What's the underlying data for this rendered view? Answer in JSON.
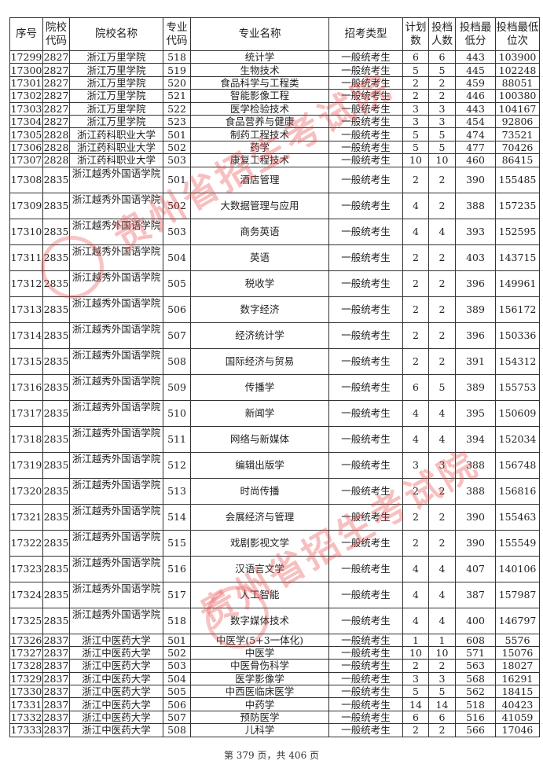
{
  "header": [
    "序号",
    "院校代码",
    "院校名称",
    "专业代码",
    "专业名称",
    "招考类型",
    "计划数",
    "投档人数",
    "投档最低分",
    "投档最低位次"
  ],
  "rows": [
    [
      "17299",
      "2827",
      "浙江万里学院",
      "518",
      "统计学",
      "一般统考生",
      "6",
      "6",
      "443",
      "103900"
    ],
    [
      "17300",
      "2827",
      "浙江万里学院",
      "519",
      "生物技术",
      "一般统考生",
      "5",
      "5",
      "445",
      "102248"
    ],
    [
      "17301",
      "2827",
      "浙江万里学院",
      "520",
      "食品科学与工程类",
      "一般统考生",
      "2",
      "2",
      "459",
      "88051"
    ],
    [
      "17302",
      "2827",
      "浙江万里学院",
      "521",
      "智能影像工程",
      "一般统考生",
      "2",
      "2",
      "446",
      "100380"
    ],
    [
      "17303",
      "2827",
      "浙江万里学院",
      "522",
      "医学检验技术",
      "一般统考生",
      "3",
      "3",
      "443",
      "104167"
    ],
    [
      "17304",
      "2827",
      "浙江万里学院",
      "523",
      "食品营养与健康",
      "一般统考生",
      "3",
      "3",
      "454",
      "92806"
    ],
    [
      "17305",
      "2828",
      "浙江药科职业大学",
      "501",
      "制药工程技术",
      "一般统考生",
      "5",
      "5",
      "474",
      "73521"
    ],
    [
      "17306",
      "2828",
      "浙江药科职业大学",
      "502",
      "药学",
      "一般统考生",
      "5",
      "5",
      "477",
      "70426"
    ],
    [
      "17307",
      "2828",
      "浙江药科职业大学",
      "503",
      "康复工程技术",
      "一般统考生",
      "10",
      "10",
      "460",
      "86415"
    ],
    [
      "17308",
      "2835",
      "浙江越秀外国语学院",
      "501",
      "酒店管理",
      "一般统考生",
      "2",
      "2",
      "390",
      "155485"
    ],
    [
      "17309",
      "2835",
      "浙江越秀外国语学院",
      "502",
      "大数据管理与应用",
      "一般统考生",
      "4",
      "2",
      "388",
      "157235"
    ],
    [
      "17310",
      "2835",
      "浙江越秀外国语学院",
      "503",
      "商务英语",
      "一般统考生",
      "4",
      "4",
      "393",
      "152595"
    ],
    [
      "17311",
      "2835",
      "浙江越秀外国语学院",
      "504",
      "英语",
      "一般统考生",
      "2",
      "2",
      "403",
      "143715"
    ],
    [
      "17312",
      "2835",
      "浙江越秀外国语学院",
      "505",
      "税收学",
      "一般统考生",
      "2",
      "2",
      "396",
      "149961"
    ],
    [
      "17313",
      "2835",
      "浙江越秀外国语学院",
      "506",
      "数字经济",
      "一般统考生",
      "2",
      "2",
      "389",
      "156172"
    ],
    [
      "17314",
      "2835",
      "浙江越秀外国语学院",
      "507",
      "经济统计学",
      "一般统考生",
      "2",
      "2",
      "396",
      "150336"
    ],
    [
      "17315",
      "2835",
      "浙江越秀外国语学院",
      "508",
      "国际经济与贸易",
      "一般统考生",
      "2",
      "2",
      "391",
      "154312"
    ],
    [
      "17316",
      "2835",
      "浙江越秀外国语学院",
      "509",
      "传播学",
      "一般统考生",
      "6",
      "5",
      "389",
      "155753"
    ],
    [
      "17317",
      "2835",
      "浙江越秀外国语学院",
      "510",
      "新闻学",
      "一般统考生",
      "4",
      "4",
      "395",
      "150609"
    ],
    [
      "17318",
      "2835",
      "浙江越秀外国语学院",
      "511",
      "网络与新媒体",
      "一般统考生",
      "4",
      "4",
      "394",
      "152034"
    ],
    [
      "17319",
      "2835",
      "浙江越秀外国语学院",
      "512",
      "编辑出版学",
      "一般统考生",
      "3",
      "3",
      "388",
      "156748"
    ],
    [
      "17320",
      "2835",
      "浙江越秀外国语学院",
      "513",
      "时尚传播",
      "一般统考生",
      "2",
      "2",
      "388",
      "156816"
    ],
    [
      "17321",
      "2835",
      "浙江越秀外国语学院",
      "514",
      "会展经济与管理",
      "一般统考生",
      "2",
      "2",
      "390",
      "155463"
    ],
    [
      "17322",
      "2835",
      "浙江越秀外国语学院",
      "515",
      "戏剧影视文学",
      "一般统考生",
      "2",
      "2",
      "390",
      "155549"
    ],
    [
      "17323",
      "2835",
      "浙江越秀外国语学院",
      "516",
      "汉语言文学",
      "一般统考生",
      "4",
      "4",
      "407",
      "140106"
    ],
    [
      "17324",
      "2835",
      "浙江越秀外国语学院",
      "517",
      "人工智能",
      "一般统考生",
      "4",
      "4",
      "387",
      "157987"
    ],
    [
      "17325",
      "2835",
      "浙江越秀外国语学院",
      "518",
      "数字媒体技术",
      "一般统考生",
      "4",
      "4",
      "400",
      "146797"
    ],
    [
      "17326",
      "2837",
      "浙江中医药大学",
      "501",
      "中医学(5+3一体化)",
      "一般统考生",
      "1",
      "1",
      "608",
      "5576"
    ],
    [
      "17327",
      "2837",
      "浙江中医药大学",
      "502",
      "中医学",
      "一般统考生",
      "10",
      "10",
      "571",
      "15076"
    ],
    [
      "17328",
      "2837",
      "浙江中医药大学",
      "503",
      "中医骨伤科学",
      "一般统考生",
      "2",
      "2",
      "563",
      "18027"
    ],
    [
      "17329",
      "2837",
      "浙江中医药大学",
      "504",
      "医学影像学",
      "一般统考生",
      "3",
      "3",
      "568",
      "16291"
    ],
    [
      "17330",
      "2837",
      "浙江中医药大学",
      "505",
      "中西医临床医学",
      "一般统考生",
      "5",
      "5",
      "562",
      "18415"
    ],
    [
      "17331",
      "2837",
      "浙江中医药大学",
      "506",
      "中药学",
      "一般统考生",
      "14",
      "14",
      "518",
      "40423"
    ],
    [
      "17332",
      "2837",
      "浙江中医药大学",
      "507",
      "预防医学",
      "一般统考生",
      "6",
      "6",
      "516",
      "41059"
    ],
    [
      "17333",
      "2837",
      "浙江中医药大学",
      "508",
      "儿科学",
      "一般统考生",
      "2",
      "2",
      "566",
      "17046"
    ]
  ],
  "footer": "第 379 页，共 406 页",
  "watermark": "贵州省招生考试院",
  "watermark_color": "#e63c3c"
}
